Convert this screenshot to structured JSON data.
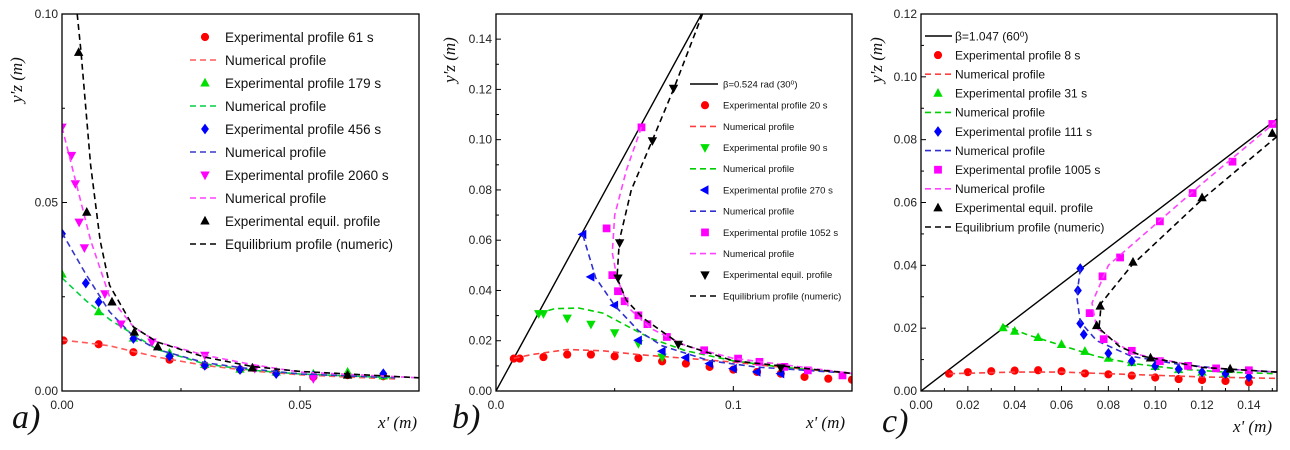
{
  "chart_data": [
    {
      "type": "scatter",
      "panel_label": "a)",
      "xlabel": "x' (m)",
      "ylabel": "y'z (m)",
      "xlim": [
        0,
        0.075
      ],
      "ylim": [
        0,
        0.1
      ],
      "xticks": [
        "0.00",
        "0.05"
      ],
      "xtick_values": [
        0,
        0.05
      ],
      "yticks": [
        "0.00",
        "0.05",
        "0.10"
      ],
      "ytick_values": [
        0,
        0.05,
        0.1
      ],
      "grid": false,
      "legend_position": "top-right",
      "series": [
        {
          "name": "Experimental profile 61 s",
          "kind": "markers",
          "marker": "circle",
          "color": "#ff0000",
          "x": [
            0.0003,
            0.0077,
            0.015,
            0.0226,
            0.03,
            0.0374,
            0.045,
            0.0528,
            0.06,
            0.0675
          ],
          "y": [
            0.0134,
            0.0124,
            0.0103,
            0.0083,
            0.0068,
            0.0057,
            0.0048,
            0.0037,
            0.0042,
            0.0039
          ]
        },
        {
          "name": "Numerical profile",
          "kind": "dashed",
          "color": "#ff5a5a",
          "x": [
            0,
            0.005,
            0.01,
            0.02,
            0.03,
            0.04,
            0.05,
            0.06,
            0.07
          ],
          "y": [
            0.0135,
            0.0128,
            0.012,
            0.009,
            0.0068,
            0.0053,
            0.0043,
            0.0037,
            0.0032
          ]
        },
        {
          "name": "Experimental profile 179 s",
          "kind": "markers",
          "marker": "triangle-up",
          "color": "#00e000",
          "x": [
            0,
            0.0077,
            0.015,
            0.0226,
            0.03,
            0.0374,
            0.045,
            0.0528,
            0.06,
            0.0675
          ],
          "y": [
            0.031,
            0.021,
            0.014,
            0.01,
            0.007,
            0.0058,
            0.005,
            0.0045,
            0.005,
            0.004
          ]
        },
        {
          "name": "Numerical profile",
          "kind": "dashed",
          "color": "#00d040",
          "x": [
            0,
            0.005,
            0.01,
            0.015,
            0.02,
            0.03,
            0.04,
            0.05,
            0.07
          ],
          "y": [
            0.03,
            0.024,
            0.019,
            0.015,
            0.011,
            0.0072,
            0.0055,
            0.0045,
            0.0035
          ]
        },
        {
          "name": "Experimental profile 456 s",
          "kind": "markers",
          "marker": "diamond",
          "color": "#0000ff",
          "x": [
            0,
            0.005,
            0.0077,
            0.015,
            0.0226,
            0.03,
            0.0374,
            0.045,
            0.0528,
            0.0675
          ],
          "y": [
            0.0417,
            0.0286,
            0.0236,
            0.0139,
            0.0092,
            0.0068,
            0.0057,
            0.0046,
            0.004,
            0.0046
          ]
        },
        {
          "name": "Numerical profile",
          "kind": "dashed",
          "color": "#3838c8",
          "x": [
            0,
            0.005,
            0.01,
            0.015,
            0.02,
            0.03,
            0.04,
            0.05,
            0.07
          ],
          "y": [
            0.042,
            0.031,
            0.021,
            0.0145,
            0.011,
            0.0075,
            0.0058,
            0.0045,
            0.0035
          ]
        },
        {
          "name": "Experimental profile 2060 s",
          "kind": "markers",
          "marker": "triangle-down",
          "color": "#ff00ff",
          "x": [
            0,
            0.002,
            0.0028,
            0.0036,
            0.0047,
            0.009,
            0.0124,
            0.0189,
            0.03,
            0.0405,
            0.0528
          ],
          "y": [
            0.07,
            0.0625,
            0.055,
            0.0448,
            0.038,
            0.0258,
            0.0178,
            0.013,
            0.0095,
            0.006,
            0.0033
          ]
        },
        {
          "name": "Numerical profile",
          "kind": "dashed",
          "color": "#ff44ff",
          "x": [
            0,
            0.003,
            0.006,
            0.01,
            0.015,
            0.02,
            0.03,
            0.04,
            0.05,
            0.075
          ],
          "y": [
            0.07,
            0.055,
            0.04,
            0.025,
            0.017,
            0.013,
            0.0095,
            0.007,
            0.005,
            0.0035
          ]
        },
        {
          "name": "Experimental equil. profile",
          "kind": "markers",
          "marker": "triangle-up",
          "color": "#000000",
          "x": [
            0.0035,
            0.0052,
            0.0105,
            0.0152,
            0.0201,
            0.04,
            0.06
          ],
          "y": [
            0.0898,
            0.0474,
            0.0236,
            0.0156,
            0.0117,
            0.0061,
            0.0042
          ]
        },
        {
          "name": "Equilibrium profile (numeric)",
          "kind": "dashed",
          "color": "#000000",
          "x": [
            0.0032,
            0.004,
            0.006,
            0.008,
            0.01,
            0.015,
            0.02,
            0.03,
            0.04,
            0.05,
            0.075
          ],
          "y": [
            0.1,
            0.09,
            0.06,
            0.04,
            0.028,
            0.017,
            0.013,
            0.009,
            0.0065,
            0.0052,
            0.0035
          ]
        }
      ]
    },
    {
      "type": "scatter",
      "panel_label": "b)",
      "xlabel": "x' (m)",
      "ylabel": "y'z (m)",
      "xlim": [
        0,
        0.15
      ],
      "ylim": [
        0,
        0.15
      ],
      "xticks": [
        "0.0",
        "0.1"
      ],
      "xtick_values": [
        0,
        0.1
      ],
      "yticks": [
        "0.00",
        "0.02",
        "0.04",
        "0.06",
        "0.08",
        "0.10",
        "0.12",
        "0.14"
      ],
      "ytick_values": [
        0,
        0.02,
        0.04,
        0.06,
        0.08,
        0.1,
        0.12,
        0.14
      ],
      "grid": false,
      "legend_position": "right",
      "series": [
        {
          "name": "β=0.524 rad (30⁰)",
          "kind": "solid",
          "color": "#000000",
          "x": [
            0,
            0.0866
          ],
          "y": [
            0,
            0.15
          ]
        },
        {
          "name": "Experimental profile 20 s",
          "kind": "markers",
          "marker": "circle",
          "color": "#ff0000",
          "x": [
            0.0075,
            0.01,
            0.02,
            0.03,
            0.04,
            0.05,
            0.06,
            0.07,
            0.08,
            0.09,
            0.1,
            0.11,
            0.12,
            0.13,
            0.14,
            0.15
          ],
          "y": [
            0.0129,
            0.0129,
            0.0135,
            0.0145,
            0.0145,
            0.0138,
            0.0131,
            0.0118,
            0.0109,
            0.0096,
            0.0085,
            0.0076,
            0.0069,
            0.0056,
            0.0049,
            0.0045
          ]
        },
        {
          "name": "Numerical profile",
          "kind": "dashed",
          "color": "#ff4040",
          "x": [
            0.0075,
            0.015,
            0.03,
            0.045,
            0.06,
            0.08,
            0.1,
            0.12,
            0.15
          ],
          "y": [
            0.013,
            0.0145,
            0.0165,
            0.016,
            0.0145,
            0.013,
            0.0115,
            0.0095,
            0.007
          ]
        },
        {
          "name": "Experimental profile 90 s",
          "kind": "markers",
          "marker": "triangle-down",
          "color": "#00e000",
          "x": [
            0.018,
            0.02,
            0.03,
            0.04,
            0.05,
            0.06,
            0.07
          ],
          "y": [
            0.0308,
            0.0308,
            0.029,
            0.0266,
            0.0232,
            0.0189,
            0.0135
          ]
        },
        {
          "name": "Numerical profile",
          "kind": "dashed",
          "color": "#00d000",
          "x": [
            0.018,
            0.025,
            0.035,
            0.045,
            0.055,
            0.065,
            0.08,
            0.1,
            0.12,
            0.15
          ],
          "y": [
            0.031,
            0.0328,
            0.033,
            0.031,
            0.026,
            0.021,
            0.016,
            0.012,
            0.0095,
            0.007
          ]
        },
        {
          "name": "Experimental profile 270 s",
          "kind": "markers",
          "marker": "triangle-left",
          "color": "#0000ff",
          "x": [
            0.0366,
            0.04,
            0.05,
            0.06,
            0.07,
            0.08,
            0.09,
            0.1,
            0.11,
            0.12
          ],
          "y": [
            0.0623,
            0.0454,
            0.0341,
            0.0202,
            0.0158,
            0.0133,
            0.0109,
            0.0089,
            0.0076,
            0.0069
          ]
        },
        {
          "name": "Numerical profile",
          "kind": "dashed",
          "color": "#3030d0",
          "x": [
            0.0366,
            0.042,
            0.05,
            0.06,
            0.07,
            0.09,
            0.11,
            0.15
          ],
          "y": [
            0.062,
            0.045,
            0.034,
            0.024,
            0.018,
            0.012,
            0.0095,
            0.007
          ]
        },
        {
          "name": "Experimental profile 1052 s",
          "kind": "markers",
          "marker": "square",
          "color": "#ff00ff",
          "x": [
            0.0613,
            0.0466,
            0.049,
            0.0514,
            0.0542,
            0.06,
            0.0638,
            0.072,
            0.0877,
            0.102,
            0.111,
            0.1215,
            0.1314,
            0.146
          ],
          "y": [
            0.1049,
            0.0647,
            0.0461,
            0.0397,
            0.0357,
            0.0301,
            0.0266,
            0.0215,
            0.0162,
            0.0129,
            0.0116,
            0.0096,
            0.0082,
            0.0062
          ]
        },
        {
          "name": "Numerical profile",
          "kind": "dashed",
          "color": "#ff44ff",
          "x": [
            0.0613,
            0.055,
            0.05,
            0.049,
            0.051,
            0.056,
            0.065,
            0.08,
            0.1,
            0.15
          ],
          "y": [
            0.105,
            0.088,
            0.07,
            0.055,
            0.045,
            0.033,
            0.025,
            0.018,
            0.013,
            0.007
          ]
        },
        {
          "name": "Experimental equil. profile",
          "kind": "markers",
          "marker": "triangle-down",
          "color": "#000000",
          "x": [
            0.0748,
            0.0659,
            0.0521,
            0.0514,
            0.0768,
            0.12
          ],
          "y": [
            0.1205,
            0.0996,
            0.059,
            0.045,
            0.0186,
            0.0092
          ]
        },
        {
          "name": "Equilibrium profile (numeric)",
          "kind": "dashed",
          "color": "#000000",
          "x": [
            0.087,
            0.0748,
            0.066,
            0.057,
            0.052,
            0.051,
            0.055,
            0.062,
            0.077,
            0.1,
            0.15
          ],
          "y": [
            0.15,
            0.12,
            0.1,
            0.08,
            0.06,
            0.045,
            0.036,
            0.029,
            0.019,
            0.012,
            0.007
          ]
        }
      ]
    },
    {
      "type": "scatter",
      "panel_label": "c)",
      "xlabel": "x' (m)",
      "ylabel": "y'z (m)",
      "xlim": [
        0,
        0.152
      ],
      "ylim": [
        0,
        0.12
      ],
      "xticks": [
        "0.00",
        "0.02",
        "0.04",
        "0.06",
        "0.08",
        "0.10",
        "0.12",
        "0.14"
      ],
      "xtick_values": [
        0,
        0.02,
        0.04,
        0.06,
        0.08,
        0.1,
        0.12,
        0.14
      ],
      "yticks": [
        "0.00",
        "0.02",
        "0.04",
        "0.06",
        "0.08",
        "0.10",
        "0.12"
      ],
      "ytick_values": [
        0,
        0.02,
        0.04,
        0.06,
        0.08,
        0.1,
        0.12
      ],
      "grid": false,
      "legend_position": "top-left",
      "series": [
        {
          "name": "β=1.047 (60⁰)",
          "kind": "solid",
          "color": "#000000",
          "x": [
            0,
            0.152
          ],
          "y": [
            0,
            0.0866
          ]
        },
        {
          "name": "Experimental profile 8 s",
          "kind": "markers",
          "marker": "circle",
          "color": "#ff0000",
          "x": [
            0.012,
            0.02,
            0.03,
            0.04,
            0.05,
            0.06,
            0.07,
            0.08,
            0.09,
            0.1,
            0.11,
            0.12,
            0.13,
            0.14
          ],
          "y": [
            0.0055,
            0.006,
            0.0063,
            0.0065,
            0.0066,
            0.0063,
            0.0056,
            0.0053,
            0.0049,
            0.0043,
            0.0038,
            0.0035,
            0.0032,
            0.0028
          ]
        },
        {
          "name": "Numerical profile",
          "kind": "dashed",
          "color": "#ff4040",
          "x": [
            0.012,
            0.04,
            0.06,
            0.08,
            0.1,
            0.12,
            0.152
          ],
          "y": [
            0.0055,
            0.006,
            0.006,
            0.0055,
            0.005,
            0.0045,
            0.004
          ]
        },
        {
          "name": "Experimental profile 31 s",
          "kind": "markers",
          "marker": "triangle-up",
          "color": "#00e000",
          "x": [
            0.035,
            0.04,
            0.05,
            0.06,
            0.07,
            0.08,
            0.09,
            0.1,
            0.11,
            0.12,
            0.13
          ],
          "y": [
            0.0201,
            0.019,
            0.017,
            0.0148,
            0.0126,
            0.0104,
            0.009,
            0.0078,
            0.0068,
            0.006,
            0.0055
          ]
        },
        {
          "name": "Numerical profile",
          "kind": "dashed",
          "color": "#00d000",
          "x": [
            0.035,
            0.045,
            0.06,
            0.075,
            0.09,
            0.11,
            0.13,
            0.152
          ],
          "y": [
            0.021,
            0.018,
            0.0145,
            0.011,
            0.0088,
            0.007,
            0.006,
            0.0055
          ]
        },
        {
          "name": "Experimental profile 111 s",
          "kind": "markers",
          "marker": "diamond",
          "color": "#0000ff",
          "x": [
            0.068,
            0.067,
            0.068,
            0.0695,
            0.08,
            0.09,
            0.1,
            0.11,
            0.12,
            0.13,
            0.14
          ],
          "y": [
            0.039,
            0.032,
            0.0215,
            0.018,
            0.012,
            0.0095,
            0.008,
            0.007,
            0.006,
            0.0055,
            0.0045
          ]
        },
        {
          "name": "Numerical profile",
          "kind": "dashed",
          "color": "#3030d0",
          "x": [
            0.068,
            0.0665,
            0.068,
            0.075,
            0.09,
            0.11,
            0.13,
            0.152
          ],
          "y": [
            0.039,
            0.03,
            0.022,
            0.016,
            0.011,
            0.0085,
            0.007,
            0.006
          ]
        },
        {
          "name": "Experimental profile 1005 s",
          "kind": "markers",
          "marker": "square",
          "color": "#ff00ff",
          "x": [
            0.15,
            0.133,
            0.116,
            0.102,
            0.085,
            0.0775,
            0.072,
            0.078,
            0.09,
            0.102,
            0.114,
            0.126,
            0.14
          ],
          "y": [
            0.085,
            0.073,
            0.063,
            0.054,
            0.0425,
            0.0365,
            0.0248,
            0.0165,
            0.0128,
            0.0095,
            0.008,
            0.0072,
            0.0066
          ]
        },
        {
          "name": "Numerical profile",
          "kind": "dashed",
          "color": "#ff44ff",
          "x": [
            0.152,
            0.12,
            0.1,
            0.08,
            0.073,
            0.075,
            0.09,
            0.12,
            0.152
          ],
          "y": [
            0.086,
            0.066,
            0.053,
            0.04,
            0.028,
            0.02,
            0.012,
            0.0075,
            0.006
          ]
        },
        {
          "name": "Experimental equil. profile",
          "kind": "markers",
          "marker": "triangle-up",
          "color": "#000000",
          "x": [
            0.15,
            0.12,
            0.0905,
            0.0765,
            0.075,
            0.098,
            0.132
          ],
          "y": [
            0.082,
            0.0615,
            0.041,
            0.027,
            0.0208,
            0.0105,
            0.007
          ]
        },
        {
          "name": "Equilibrium profile (numeric)",
          "kind": "dashed",
          "color": "#000000",
          "x": [
            0.152,
            0.12,
            0.09,
            0.077,
            0.076,
            0.085,
            0.095,
            0.12,
            0.152
          ],
          "y": [
            0.081,
            0.061,
            0.04,
            0.028,
            0.02,
            0.014,
            0.011,
            0.0075,
            0.006
          ]
        }
      ]
    }
  ]
}
